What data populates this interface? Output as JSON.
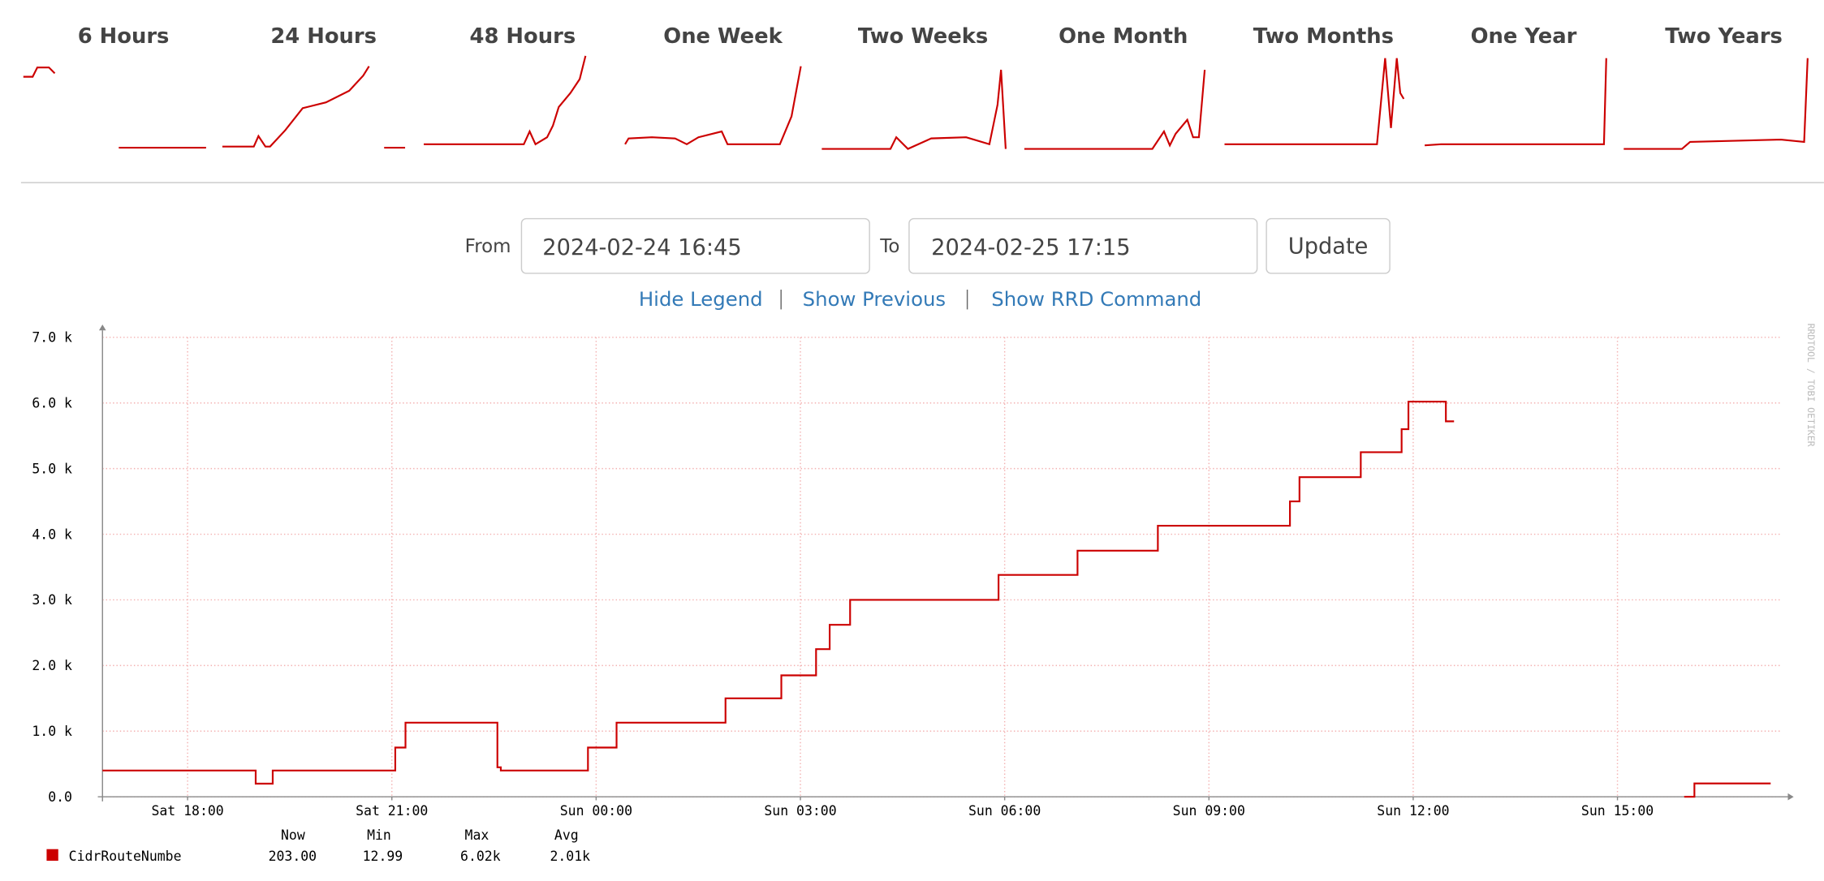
{
  "tabs": [
    "6 Hours",
    "24 Hours",
    "48 Hours",
    "One Week",
    "Two Weeks",
    "One Month",
    "Two Months",
    "One Year",
    "Two Years"
  ],
  "form": {
    "from_label": "From",
    "from_value": "2024-02-24 16:45",
    "to_label": "To",
    "to_value": "2024-02-25 17:15",
    "button": "Update"
  },
  "links": [
    "Hide Legend",
    "Show Previous",
    "Show RRD Command"
  ],
  "watermark": "RRDTOOL / TOBI OETIKER",
  "chart_data": {
    "type": "line",
    "x": [
      16.75,
      19.0,
      19.0,
      19.25,
      19.25,
      21.05,
      21.05,
      21.2,
      21.2,
      22.55,
      22.55,
      22.6,
      22.6,
      23.88,
      23.88,
      24.3,
      24.3,
      25.9,
      25.9,
      26.72,
      26.72,
      27.23,
      27.23,
      27.43,
      27.43,
      27.73,
      27.73,
      29.91,
      29.91,
      31.07,
      31.07,
      32.25,
      32.25,
      34.19,
      34.19,
      34.33,
      34.33,
      35.23,
      35.23,
      35.83,
      35.83,
      35.93,
      35.93,
      36.48,
      36.48,
      36.6,
      38.0,
      39.98,
      40.13,
      40.13,
      41.25
    ],
    "series": [
      {
        "name": "CidrRouteNumbe",
        "color": "#cc0000",
        "values": [
          400,
          400,
          200,
          200,
          400,
          400,
          750,
          750,
          1130,
          1130,
          450,
          450,
          400,
          400,
          750,
          750,
          1130,
          1130,
          1500,
          1500,
          1850,
          1850,
          2250,
          2250,
          2620,
          2620,
          3000,
          3000,
          3380,
          3380,
          3750,
          3750,
          4130,
          4130,
          4500,
          4500,
          4870,
          4870,
          5250,
          5250,
          5600,
          5600,
          6020,
          6020,
          5720,
          5720,
          null,
          0,
          0,
          203,
          203
        ]
      }
    ],
    "xlim": [
      16.75,
      41.4
    ],
    "xticks": [
      {
        "value": 18,
        "label": "Sat 18:00"
      },
      {
        "value": 21,
        "label": "Sat 21:00"
      },
      {
        "value": 24,
        "label": "Sun 00:00"
      },
      {
        "value": 27,
        "label": "Sun 03:00"
      },
      {
        "value": 30,
        "label": "Sun 06:00"
      },
      {
        "value": 33,
        "label": "Sun 09:00"
      },
      {
        "value": 36,
        "label": "Sun 12:00"
      },
      {
        "value": 39,
        "label": "Sun 15:00"
      }
    ],
    "ylim": [
      0,
      7000
    ],
    "yticks": [
      {
        "value": 0,
        "label": "0.0"
      },
      {
        "value": 1000,
        "label": "1.0 k"
      },
      {
        "value": 2000,
        "label": "2.0 k"
      },
      {
        "value": 3000,
        "label": "3.0 k"
      },
      {
        "value": 4000,
        "label": "4.0 k"
      },
      {
        "value": 5000,
        "label": "5.0 k"
      },
      {
        "value": 6000,
        "label": "6.0 k"
      },
      {
        "value": 7000,
        "label": "7.0 k"
      }
    ],
    "grid": true,
    "legend_stats": {
      "headers": [
        "Now",
        "Min",
        "Max",
        "Avg"
      ],
      "values": [
        "203.00",
        "12.99",
        "6.02k",
        "2.01k"
      ]
    }
  }
}
